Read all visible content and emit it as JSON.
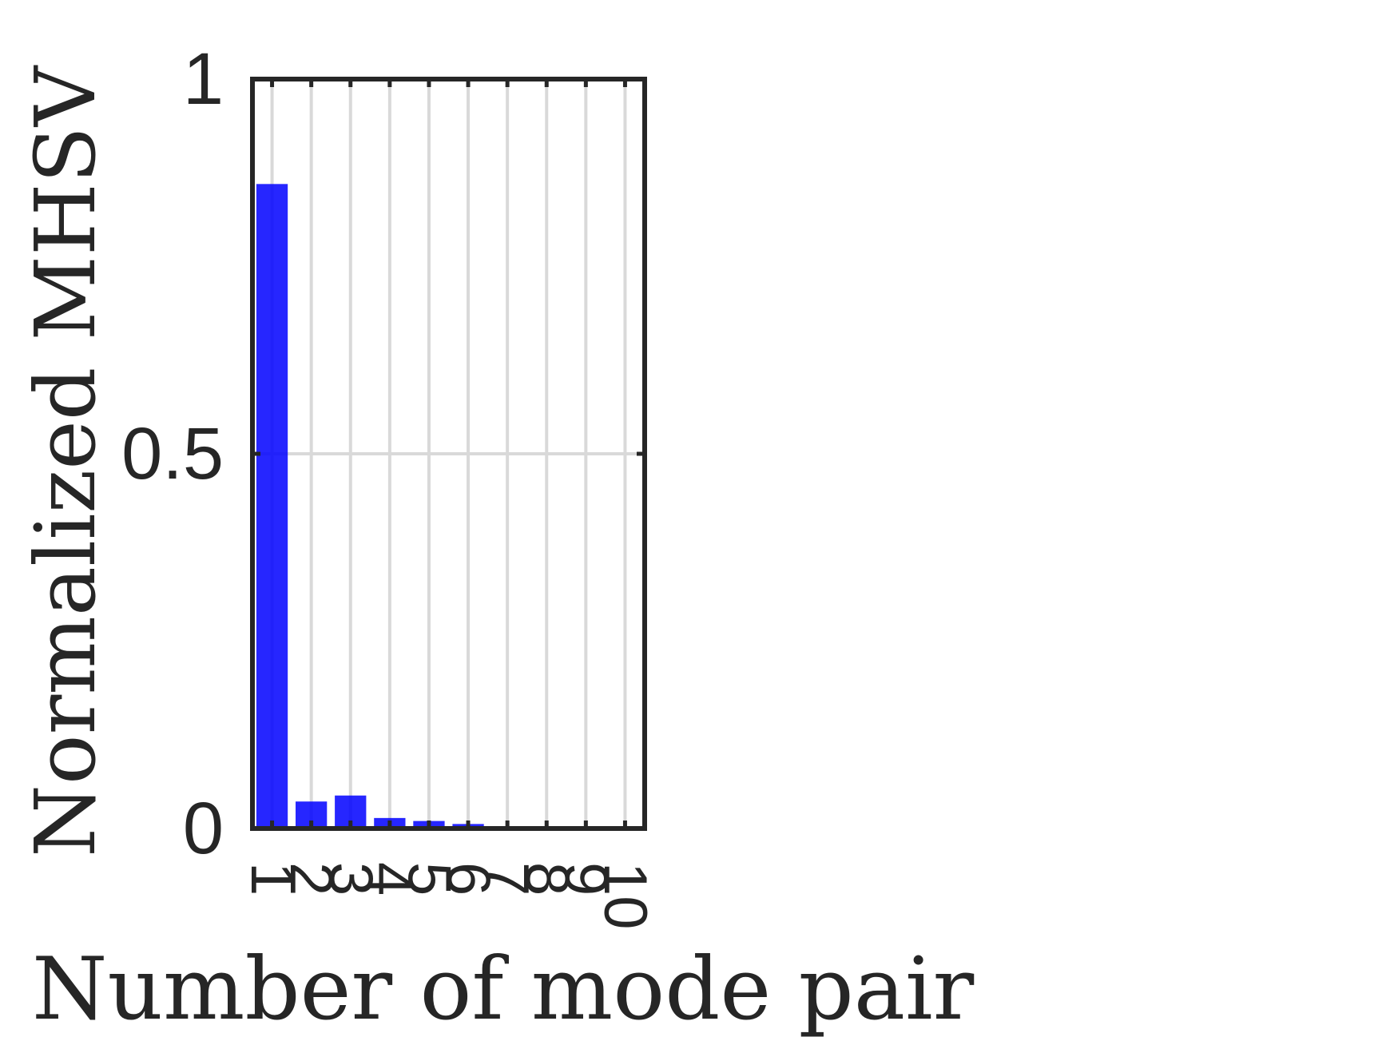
{
  "chart_data": {
    "type": "bar",
    "title": "",
    "xlabel": "Number of mode pair",
    "ylabel": "Normalized MHSV",
    "categories": [
      "1",
      "2",
      "3",
      "4",
      "5",
      "6",
      "7",
      "8",
      "9",
      "10"
    ],
    "values": [
      0.86,
      0.036,
      0.044,
      0.014,
      0.01,
      0.006,
      0,
      0,
      0,
      0
    ],
    "ylim": [
      0,
      1
    ],
    "xlim": [
      0.5,
      10.5
    ],
    "yticks": [
      0,
      0.5,
      1
    ],
    "ytick_labels": [
      "0",
      "0.5",
      "1"
    ],
    "xtick_rotation": "90",
    "grid": true,
    "bar_color": "#0000ff",
    "axis_color": "#262626",
    "grid_color": "#d9d9d9"
  }
}
